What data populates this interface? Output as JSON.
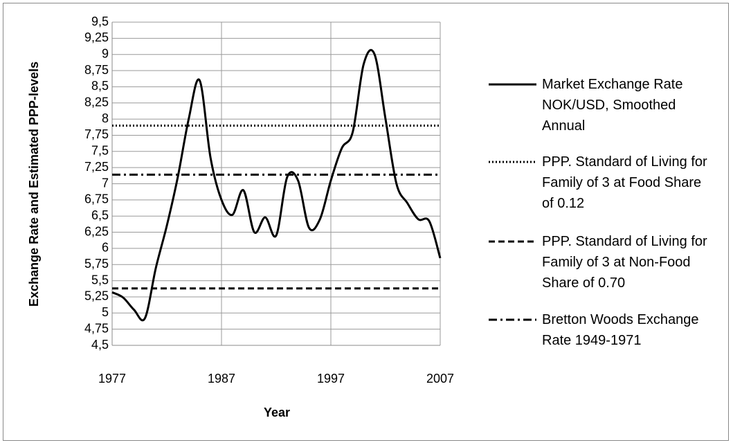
{
  "chart_data": {
    "type": "line",
    "x_label": "Year",
    "y_label": "Exchange Rate and Estimated PPP-levels",
    "xlim": [
      1977,
      2007
    ],
    "xticks": [
      1977,
      1987,
      1997,
      2007
    ],
    "ylim": [
      4.5,
      9.5
    ],
    "yticks": [
      {
        "value": 4.5,
        "label": "4,5"
      },
      {
        "value": 4.75,
        "label": "4,75"
      },
      5,
      {
        "value": 5.25,
        "label": "5,25"
      },
      {
        "value": 5.5,
        "label": "5,5"
      },
      {
        "value": 5.75,
        "label": "5,75"
      },
      6,
      {
        "value": 6.25,
        "label": "6,25"
      },
      {
        "value": 6.5,
        "label": "6,5"
      },
      {
        "value": 6.75,
        "label": "6,75"
      },
      7,
      {
        "value": 7.25,
        "label": "7,25"
      },
      {
        "value": 7.5,
        "label": "7,5"
      },
      {
        "value": 7.75,
        "label": "7,75"
      },
      8,
      {
        "value": 8.25,
        "label": "8,25"
      },
      {
        "value": 8.5,
        "label": "8,5"
      },
      {
        "value": 8.75,
        "label": "8,75"
      },
      9,
      {
        "value": 9.25,
        "label": "9,25"
      },
      {
        "value": 9.5,
        "label": "9,5"
      }
    ],
    "grid": true,
    "legend": "right",
    "series": [
      {
        "name": "Market Exchange Rate NOK/USD, Smoothed Annual",
        "color": "#000000",
        "dash": "solid",
        "smooth": true,
        "x": [
          1977,
          1978,
          1979,
          1980,
          1981,
          1982,
          1983,
          1984,
          1985,
          1986,
          1987,
          1988,
          1989,
          1990,
          1991,
          1992,
          1993,
          1994,
          1995,
          1996,
          1997,
          1998,
          1999,
          2000,
          2001,
          2002,
          2003,
          2004,
          2005,
          2006,
          2007
        ],
        "values": [
          5.32,
          5.24,
          5.05,
          4.92,
          5.7,
          6.35,
          7.1,
          8.0,
          8.6,
          7.4,
          6.75,
          6.52,
          6.9,
          6.25,
          6.48,
          6.2,
          7.1,
          7.05,
          6.32,
          6.45,
          7.05,
          7.55,
          7.8,
          8.85,
          9.0,
          8.0,
          7.0,
          6.7,
          6.45,
          6.42,
          5.85
        ]
      },
      {
        "name": "PPP. Standard of Living for Family of 3 at Food Share of 0.12",
        "color": "#000000",
        "dash": "dotted",
        "x": [
          1977,
          2007
        ],
        "values": [
          7.9,
          7.9
        ]
      },
      {
        "name": "PPP. Standard of Living for Family of 3 at Non-Food Share of 0.70",
        "color": "#000000",
        "dash": "dashed",
        "x": [
          1977,
          2007
        ],
        "values": [
          5.38,
          5.38
        ]
      },
      {
        "name": "Bretton Woods Exchange Rate 1949-1971",
        "color": "#000000",
        "dash": "dashdot",
        "x": [
          1977,
          2007
        ],
        "values": [
          7.14,
          7.14
        ]
      }
    ]
  }
}
